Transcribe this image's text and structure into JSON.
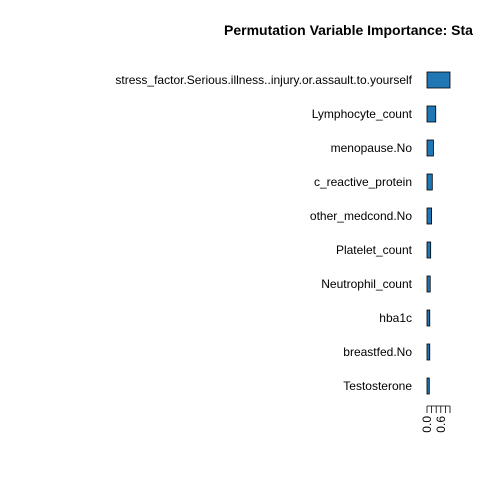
{
  "chart_data": {
    "type": "bar",
    "orientation": "horizontal",
    "title": "Permutation Variable Importance: Sta",
    "xlabel": "",
    "ylabel": "",
    "categories": [
      "stress_factor.Serious.illness..injury.or.assault.to.yourself",
      "Lymphocyte_count",
      "menopause.No",
      "c_reactive_protein",
      "other_medcond.No",
      "Platelet_count",
      "Neutrophil_count",
      "hba1c",
      "breastfed.No",
      "Testosterone"
    ],
    "values": [
      1.0,
      0.38,
      0.28,
      0.23,
      0.2,
      0.16,
      0.14,
      0.12,
      0.12,
      0.1
    ],
    "xlim": [
      0,
      1.0
    ],
    "x_ticks": [
      "0.0",
      "0.6"
    ],
    "bar_color": "#1f77b4",
    "bar_edge_color": "#000000",
    "grid": false,
    "legend": "none"
  }
}
